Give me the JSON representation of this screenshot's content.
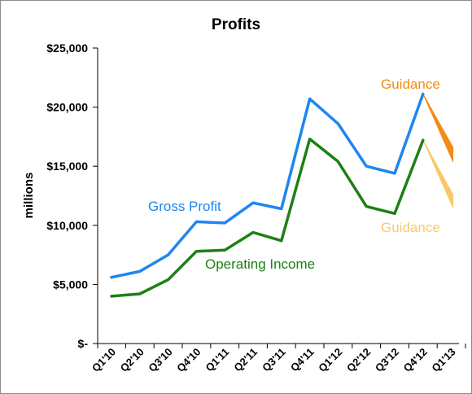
{
  "chart_data": {
    "type": "line",
    "title": "Profits",
    "ylabel": "millions",
    "xlabel": "",
    "ylim": [
      0,
      25000
    ],
    "yticks": [
      0,
      5000,
      10000,
      15000,
      20000,
      25000
    ],
    "ytick_labels": [
      "$-",
      "$5,000",
      "$10,000",
      "$15,000",
      "$20,000",
      "$25,000"
    ],
    "grid": false,
    "categories": [
      "Q1'10",
      "Q2'10",
      "Q3'10",
      "Q4'10",
      "Q1'11",
      "Q2'11",
      "Q3'11",
      "Q4'11",
      "Q1'12",
      "Q2'12",
      "Q3'12",
      "Q4'12",
      "Q1'13"
    ],
    "series": [
      {
        "name": "Gross Profit",
        "color": "#1e86f0",
        "values": [
          5600,
          6100,
          7500,
          10300,
          10200,
          11900,
          11400,
          20700,
          18600,
          15000,
          14400,
          21100,
          null
        ]
      },
      {
        "name": "Operating Income",
        "color": "#1e8014",
        "values": [
          4000,
          4200,
          5400,
          7800,
          7900,
          9400,
          8700,
          17300,
          15400,
          11600,
          11000,
          17200,
          null
        ]
      }
    ],
    "guidance": [
      {
        "label": "Guidance",
        "color": "#f58a16",
        "from": {
          "category": "Q4'12",
          "value": 21100
        },
        "to": {
          "category": "Q1'13",
          "low": 15400,
          "high": 16600
        }
      },
      {
        "label": "Guidance",
        "color": "#fac86c",
        "from": {
          "category": "Q4'12",
          "value": 17200
        },
        "to": {
          "category": "Q1'13",
          "low": 11500,
          "high": 12600
        }
      }
    ]
  }
}
